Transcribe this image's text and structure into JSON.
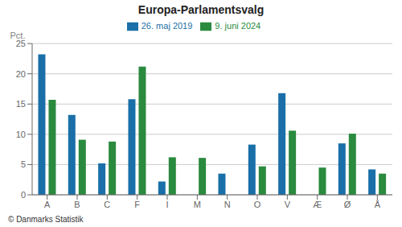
{
  "chart_data": {
    "type": "bar",
    "title": "Europa-Parlamentsvalg",
    "categories": [
      "A",
      "B",
      "C",
      "F",
      "I",
      "M",
      "N",
      "O",
      "V",
      "Æ",
      "Ø",
      "Å"
    ],
    "series": [
      {
        "name": "26. maj 2019",
        "color": "#1a6fa8",
        "values": [
          23.2,
          13.2,
          5.2,
          15.8,
          2.2,
          0.0,
          3.5,
          8.3,
          16.8,
          0.0,
          8.5,
          4.2
        ]
      },
      {
        "name": "9. juni 2024",
        "color": "#2a8a3e",
        "values": [
          15.7,
          9.1,
          8.8,
          21.2,
          6.2,
          6.1,
          0.0,
          4.7,
          10.6,
          4.5,
          10.1,
          3.5
        ]
      }
    ],
    "ylabel": "Pct.",
    "ylim": [
      0,
      25
    ],
    "yticks": [
      0,
      5,
      10,
      15,
      20,
      25
    ],
    "grid": true,
    "legend": "top",
    "footnote": "© Danmarks Statistik"
  }
}
